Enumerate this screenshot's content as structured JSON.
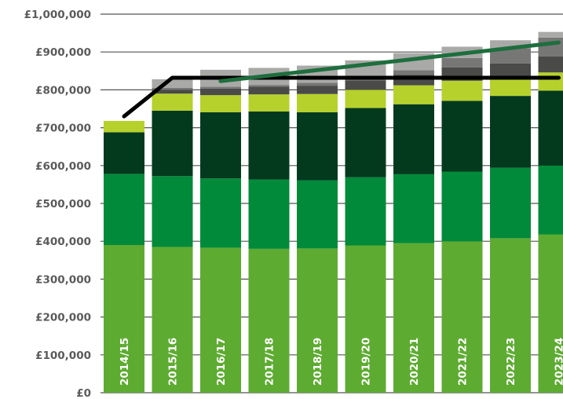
{
  "chart_data": {
    "type": "bar",
    "stacked": true,
    "categories": [
      "2014/15",
      "2015/16",
      "2016/17",
      "2017/18",
      "2018/19",
      "2019/20",
      "2020/21",
      "2021/22",
      "2022/23",
      "2023/24"
    ],
    "ylim": [
      0,
      1000000
    ],
    "yticks": [
      0,
      100000,
      200000,
      300000,
      400000,
      500000,
      600000,
      700000,
      800000,
      900000,
      1000000
    ],
    "ytick_labels": [
      "£0",
      "£100,000",
      "£200,000",
      "£300,000",
      "£400,000",
      "£500,000",
      "£600,000",
      "£700,000",
      "£800,000",
      "£900,000",
      "£1,000,000"
    ],
    "grid": "horizontal",
    "legend": "none",
    "series": [
      {
        "color": "#5eab32",
        "values": [
          390000,
          385000,
          383000,
          380000,
          381000,
          389000,
          395000,
          400000,
          408000,
          418000
        ]
      },
      {
        "color": "#008a3a",
        "values": [
          188000,
          187000,
          183000,
          183000,
          180000,
          180000,
          182000,
          184000,
          186000,
          182000
        ]
      },
      {
        "color": "#033a1e",
        "values": [
          110000,
          173000,
          175000,
          180000,
          180000,
          183000,
          185000,
          187000,
          190000,
          198000
        ]
      },
      {
        "color": "#b6d12b",
        "values": [
          30000,
          45000,
          45000,
          45000,
          48000,
          48000,
          50000,
          53000,
          48000,
          48000
        ]
      },
      {
        "color": "#4a4a48",
        "values": [
          0,
          10000,
          17000,
          20000,
          22000,
          25000,
          28000,
          35000,
          38000,
          42000
        ]
      },
      {
        "color": "#777776",
        "values": [
          0,
          5000,
          5000,
          5000,
          8000,
          10000,
          12000,
          25000,
          40000,
          50000
        ]
      },
      {
        "color": "#a9a9a7",
        "values": [
          0,
          23000,
          45000,
          45000,
          45000,
          43000,
          45000,
          30000,
          21000,
          15000
        ]
      }
    ],
    "lines": [
      {
        "color": "#000000",
        "x": [
          "2014/15",
          "2015/16",
          "2023/24"
        ],
        "y": [
          730000,
          832000,
          832000
        ]
      },
      {
        "color": "#1e6e3e",
        "x": [
          "2016/17",
          "2023/24"
        ],
        "y": [
          823000,
          925000
        ]
      }
    ]
  }
}
